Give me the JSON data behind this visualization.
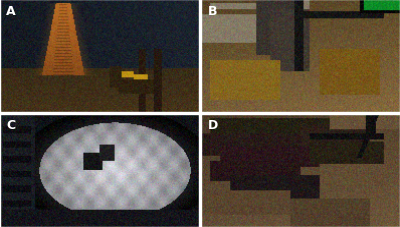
{
  "figsize": [
    4.0,
    2.28
  ],
  "dpi": 100,
  "grid_rows": 2,
  "grid_cols": 2,
  "labels": [
    "A",
    "B",
    "C",
    "D"
  ],
  "label_color": "white",
  "label_fontsize": 9,
  "label_fontweight": "bold",
  "border_color": "white",
  "border_linewidth": 1.0,
  "wspace": 0.015,
  "hspace": 0.015,
  "panel_A": {
    "bg": [
      0.08,
      0.1,
      0.13
    ],
    "chimney_color": [
      0.62,
      0.42,
      0.15
    ],
    "floor_color": [
      0.22,
      0.17,
      0.09
    ],
    "arm_yellow": [
      0.75,
      0.58,
      0.08
    ],
    "arm_dark": [
      0.18,
      0.13,
      0.06
    ],
    "water_color": [
      0.1,
      0.14,
      0.2
    ]
  },
  "panel_B": {
    "bg": [
      0.38,
      0.3,
      0.18
    ],
    "rock_light": [
      0.55,
      0.47,
      0.32
    ],
    "rock_dark": [
      0.18,
      0.15,
      0.1
    ],
    "golden": [
      0.52,
      0.4,
      0.12
    ],
    "green_display": [
      0.05,
      0.55,
      0.15
    ],
    "pipe_color": [
      0.08,
      0.08,
      0.08
    ]
  },
  "panel_C": {
    "bg": [
      0.06,
      0.07,
      0.09
    ],
    "equipment_dark": [
      0.12,
      0.13,
      0.15
    ],
    "mineral_white": [
      0.75,
      0.75,
      0.75
    ],
    "mineral_grey": [
      0.45,
      0.45,
      0.48
    ],
    "floor_dark": [
      0.1,
      0.1,
      0.12
    ]
  },
  "panel_D": {
    "bg": [
      0.28,
      0.22,
      0.15
    ],
    "lava_dark": [
      0.12,
      0.1,
      0.08
    ],
    "rock_mid": [
      0.35,
      0.28,
      0.18
    ],
    "rock_light": [
      0.48,
      0.38,
      0.25
    ],
    "tool_dark": [
      0.06,
      0.06,
      0.06
    ]
  }
}
